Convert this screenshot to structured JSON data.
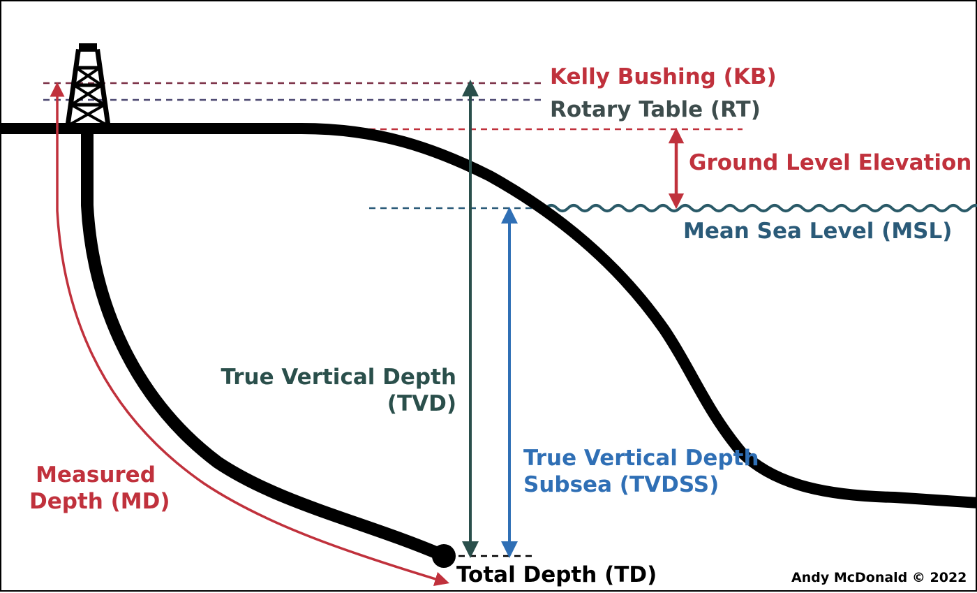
{
  "colors": {
    "red": "#c0313c",
    "teal": "#2a4f4b",
    "blue": "#2f6fb5",
    "sea_label": "#2a5a78",
    "rt": "#3d4c4c",
    "black": "#000000"
  },
  "labels": {
    "kelly_bushing": "Kelly Bushing (KB)",
    "rotary_table": "Rotary Table (RT)",
    "ground_level_elevation": "Ground Level Elevation",
    "mean_sea_level": "Mean Sea Level (MSL)",
    "tvd_line1": "True Vertical Depth",
    "tvd_line2": "(TVD)",
    "tvdss_line1": "True Vertical Depth",
    "tvdss_line2": "Subsea (TVDSS)",
    "md_line1": "Measured",
    "md_line2": "Depth (MD)",
    "total_depth": "Total Depth (TD)",
    "credit": "Andy McDonald © 2022"
  },
  "icons": {
    "rig": "drilling-rig-icon",
    "td_marker": "total-depth-marker-icon"
  }
}
